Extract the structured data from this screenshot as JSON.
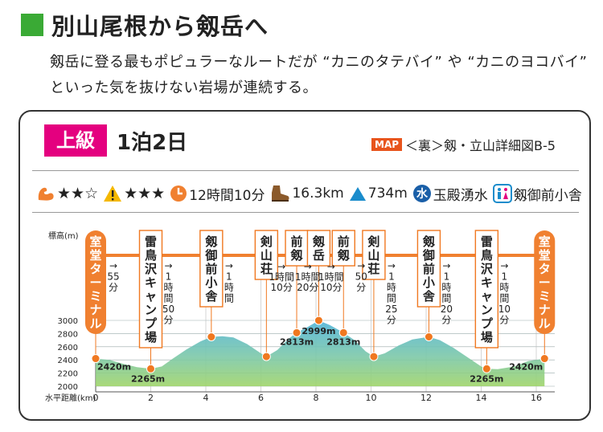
{
  "header": {
    "title": "別山尾根から剱岳へ",
    "lead": "剱岳に登る最もポピュラーなルートだが “カニのタテバイ” や “カニのヨコバイ” といった気を抜けない岩場が連続する。"
  },
  "card": {
    "level": "上級",
    "duration": "1泊2日",
    "map_badge": "MAP",
    "map_ref": "＜裏＞剱・立山詳細図B-5"
  },
  "stats": {
    "stamina_stars": "★★☆",
    "technique_stars": "★★★",
    "time": "12時間10分",
    "distance": "16.3km",
    "elevation_gain": "734m",
    "water": "玉殿湧水",
    "toilet": "剱御前小舎"
  },
  "colors": {
    "title_square": "#3aaa35",
    "level_bg": "#e4007f",
    "terminal_bg": "#f08030",
    "dot": "#f07820",
    "route_line": "#f08030"
  },
  "profile": {
    "y_axis_label": "標高(m)",
    "x_axis_label": "水平距離(km)",
    "y_ticks": [
      "3000",
      "2800",
      "2600",
      "2400",
      "2200",
      "2000"
    ],
    "x_ticks": [
      "0",
      "2",
      "4",
      "6",
      "8",
      "10",
      "12",
      "14",
      "16"
    ],
    "stations": [
      {
        "name": "室堂ターミナル",
        "km": 0,
        "terminal": true
      },
      {
        "name": "雷鳥沢キャンプ場",
        "km": 2.0,
        "terminal": false
      },
      {
        "name": "剱御前小舎",
        "km": 4.2,
        "terminal": false
      },
      {
        "name": "剣山荘",
        "km": 6.2,
        "terminal": false
      },
      {
        "name": "前剱",
        "km": 7.3,
        "terminal": false
      },
      {
        "name": "剱岳",
        "km": 8.1,
        "terminal": false
      },
      {
        "name": "前剱",
        "km": 9.0,
        "terminal": false
      },
      {
        "name": "剣山荘",
        "km": 10.1,
        "terminal": false
      },
      {
        "name": "剱御前小舎",
        "km": 12.1,
        "terminal": false
      },
      {
        "name": "雷鳥沢キャンプ場",
        "km": 14.2,
        "terminal": false
      },
      {
        "name": "室堂ターミナル",
        "km": 16.3,
        "terminal": true
      }
    ],
    "legs": [
      [
        "→",
        "55",
        "分"
      ],
      [
        "→",
        "1",
        "時",
        "間",
        "50",
        "分"
      ],
      [
        "→",
        "1",
        "時",
        "間"
      ],
      [
        "→",
        "1時間",
        "10分"
      ],
      [
        "→",
        "1時間",
        "20分"
      ],
      [
        "→",
        "1時間",
        "10分"
      ],
      [
        "→",
        "50",
        "分"
      ],
      [
        "→",
        "1",
        "時",
        "間",
        "25",
        "分"
      ],
      [
        "→",
        "1",
        "時",
        "間",
        "20",
        "分"
      ],
      [
        "→",
        "1",
        "時",
        "間",
        "10",
        "分"
      ]
    ],
    "elevation_labels": [
      {
        "text": "2420m",
        "km": 0.0,
        "alt": 2420
      },
      {
        "text": "2265m",
        "km": 1.9,
        "alt": 2265
      },
      {
        "text": "2813m",
        "km": 7.3,
        "alt": 2813
      },
      {
        "text": "2999m",
        "km": 8.1,
        "alt": 2999
      },
      {
        "text": "2813m",
        "km": 9.0,
        "alt": 2813
      },
      {
        "text": "2265m",
        "km": 14.2,
        "alt": 2265
      },
      {
        "text": "2420m",
        "km": 16.3,
        "alt": 2420
      }
    ],
    "dots_km_alt": [
      [
        0,
        2420
      ],
      [
        2.0,
        2265
      ],
      [
        4.2,
        2750
      ],
      [
        6.2,
        2450
      ],
      [
        7.3,
        2813
      ],
      [
        8.1,
        2999
      ],
      [
        9.0,
        2813
      ],
      [
        10.1,
        2450
      ],
      [
        12.1,
        2750
      ],
      [
        14.2,
        2265
      ],
      [
        16.3,
        2420
      ]
    ],
    "terrain_km_alt": [
      [
        0,
        2420
      ],
      [
        0.5,
        2400
      ],
      [
        1.0,
        2340
      ],
      [
        1.5,
        2290
      ],
      [
        2.0,
        2265
      ],
      [
        2.4,
        2300
      ],
      [
        2.8,
        2420
      ],
      [
        3.3,
        2560
      ],
      [
        3.8,
        2680
      ],
      [
        4.2,
        2750
      ],
      [
        4.6,
        2760
      ],
      [
        5.0,
        2740
      ],
      [
        5.5,
        2640
      ],
      [
        6.0,
        2500
      ],
      [
        6.2,
        2450
      ],
      [
        6.6,
        2550
      ],
      [
        7.0,
        2720
      ],
      [
        7.3,
        2813
      ],
      [
        7.7,
        2900
      ],
      [
        8.1,
        2999
      ],
      [
        8.5,
        2930
      ],
      [
        9.0,
        2813
      ],
      [
        9.4,
        2700
      ],
      [
        9.8,
        2530
      ],
      [
        10.1,
        2450
      ],
      [
        10.5,
        2500
      ],
      [
        11.0,
        2620
      ],
      [
        11.5,
        2710
      ],
      [
        12.1,
        2750
      ],
      [
        12.5,
        2700
      ],
      [
        13.0,
        2580
      ],
      [
        13.5,
        2440
      ],
      [
        14.0,
        2300
      ],
      [
        14.2,
        2265
      ],
      [
        14.6,
        2260
      ],
      [
        15.2,
        2300
      ],
      [
        15.7,
        2380
      ],
      [
        16.3,
        2420
      ]
    ]
  }
}
